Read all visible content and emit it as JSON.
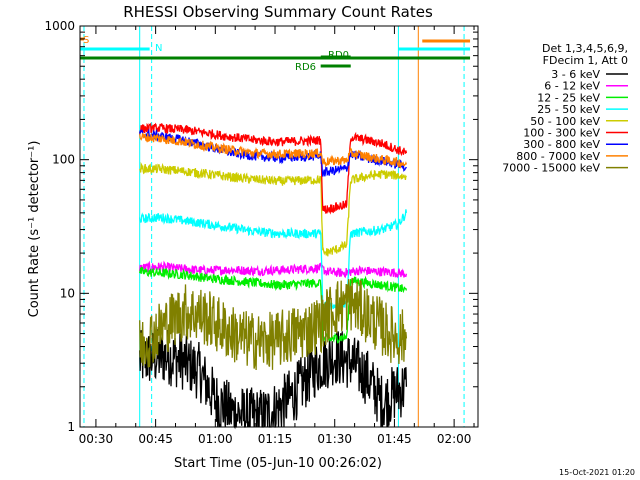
{
  "chart_data": {
    "type": "line",
    "title": "RHESSI Observing Summary Count Rates",
    "xlabel": "Start Time (05-Jun-10 00:26:02)",
    "ylabel": "Count Rate (s⁻¹ detector⁻¹)",
    "yscale": "log",
    "ylim": [
      1,
      1000
    ],
    "xlim_minutes": [
      26,
      126
    ],
    "x_ticks": [
      {
        "label": "00:30",
        "minute": 30
      },
      {
        "label": "00:45",
        "minute": 45
      },
      {
        "label": "01:00",
        "minute": 60
      },
      {
        "label": "01:15",
        "minute": 75
      },
      {
        "label": "01:30",
        "minute": 90
      },
      {
        "label": "01:45",
        "minute": 105
      },
      {
        "label": "02:00",
        "minute": 120
      }
    ],
    "y_ticks": [
      {
        "label": "1",
        "value": 1
      },
      {
        "label": "10",
        "value": 10
      },
      {
        "label": "100",
        "value": 100
      },
      {
        "label": "1000",
        "value": 1000
      }
    ],
    "legend": {
      "header": [
        "Det 1,3,4,5,6,9,",
        "FDecim 1, Att 0"
      ],
      "placement": "right"
    },
    "series": [
      {
        "name": "3 - 6 keV",
        "color": "#000000",
        "x": [
          41,
          44,
          48,
          52,
          56,
          60,
          64,
          68,
          72,
          76,
          80,
          84,
          86.5,
          90,
          94,
          98,
          102,
          105,
          108
        ],
        "y": [
          3.2,
          3.3,
          3.4,
          3.1,
          2.6,
          1.6,
          1.3,
          1.2,
          1.2,
          1.4,
          1.8,
          2.5,
          3.0,
          3.4,
          3.1,
          2.4,
          1.5,
          1.8,
          2.0
        ]
      },
      {
        "name": "6 - 12 keV",
        "color": "#ff00ff",
        "x": [
          41,
          46,
          52,
          58,
          64,
          70,
          76,
          82,
          86.5,
          88,
          92,
          96,
          100,
          104,
          108
        ],
        "y": [
          15.5,
          15.8,
          15.2,
          14.8,
          15.0,
          14.7,
          14.9,
          15.2,
          15.5,
          14.5,
          14.2,
          14.8,
          14.6,
          14.4,
          14.0
        ]
      },
      {
        "name": "12 - 25 keV",
        "color": "#00ee00",
        "x": [
          41,
          46,
          52,
          58,
          64,
          70,
          76,
          82,
          86.5,
          87,
          90,
          93,
          94,
          98,
          102,
          106,
          108
        ],
        "y": [
          14.5,
          14.2,
          13.8,
          13.0,
          12.5,
          12.0,
          11.5,
          11.8,
          12.0,
          4.5,
          4.6,
          4.7,
          12.5,
          12.0,
          11.5,
          11.0,
          10.5
        ]
      },
      {
        "name": "25 - 50 keV",
        "color": "#00ffff",
        "x": [
          41,
          46,
          52,
          58,
          64,
          70,
          76,
          82,
          86.5,
          87,
          90,
          93,
          94,
          98,
          102,
          106,
          108
        ],
        "y": [
          36,
          37,
          35,
          33,
          31,
          29,
          28,
          28,
          28,
          8.0,
          8.2,
          8.4,
          28,
          29,
          30,
          33,
          40
        ]
      },
      {
        "name": "50 - 100 keV",
        "color": "#cccc00",
        "x": [
          41,
          46,
          52,
          58,
          64,
          70,
          76,
          82,
          86.5,
          87,
          90,
          93,
          94,
          98,
          102,
          106,
          108
        ],
        "y": [
          86,
          85,
          82,
          78,
          74,
          71,
          69,
          70,
          71,
          20,
          21,
          23,
          70,
          75,
          78,
          76,
          74
        ]
      },
      {
        "name": "100 - 300 keV",
        "color": "#ff0000",
        "x": [
          41,
          46,
          52,
          58,
          64,
          70,
          76,
          82,
          86.5,
          87,
          90,
          93,
          94,
          98,
          102,
          106,
          108
        ],
        "y": [
          170,
          172,
          168,
          158,
          148,
          140,
          136,
          138,
          140,
          42,
          44,
          46,
          148,
          140,
          132,
          118,
          112
        ]
      },
      {
        "name": "300 - 800 keV",
        "color": "#0000ff",
        "x": [
          41,
          46,
          52,
          58,
          64,
          70,
          76,
          82,
          86.5,
          87,
          90,
          93,
          94,
          98,
          102,
          106,
          108
        ],
        "y": [
          156,
          150,
          140,
          126,
          113,
          106,
          103,
          105,
          107,
          80,
          83,
          86,
          110,
          102,
          98,
          92,
          88
        ]
      },
      {
        "name": "800 - 7000 keV",
        "color": "#ff8000",
        "x": [
          41,
          46,
          52,
          58,
          64,
          70,
          76,
          82,
          86.5,
          87,
          90,
          93,
          94,
          98,
          102,
          106,
          108
        ],
        "y": [
          148,
          144,
          136,
          126,
          118,
          112,
          110,
          111,
          112,
          96,
          98,
          99,
          112,
          106,
          100,
          96,
          92
        ]
      },
      {
        "name": "7000 - 15000 keV",
        "color": "#808000",
        "x": [
          41,
          44,
          48,
          52,
          56,
          60,
          64,
          68,
          72,
          76,
          80,
          84,
          86.5,
          90,
          94,
          98,
          102,
          105,
          108
        ],
        "y": [
          4.0,
          4.8,
          6.0,
          7.3,
          7.0,
          6.0,
          5.0,
          4.5,
          4.3,
          4.5,
          5.0,
          5.5,
          6.0,
          7.8,
          8.6,
          7.0,
          5.5,
          4.8,
          4.6
        ]
      }
    ],
    "flags": [
      {
        "label": "S",
        "color": "#ff8000",
        "x_start": 26,
        "x_end": 27
      },
      {
        "label": "N",
        "color": "#00ffff",
        "x_start": 26,
        "x_end": 43.5
      },
      {
        "label": "",
        "color": "#00ffff",
        "x_start": 106,
        "x_end": 124
      },
      {
        "label": "",
        "color": "#ff8000",
        "x_start": 112,
        "x_end": 124
      },
      {
        "label": "",
        "color": "#008000",
        "x_start": 26,
        "x_end": 124
      },
      {
        "label": "RD0",
        "color": "#008000",
        "x_start": 86.5,
        "x_end": 94
      },
      {
        "label": "RD6",
        "color": "#008000",
        "x_start": 86.5,
        "x_end": 94
      }
    ],
    "vertical_markers": [
      {
        "minute": 27,
        "color": "#00ffff",
        "style": "dashed"
      },
      {
        "minute": 44,
        "color": "#00ffff",
        "style": "dashed"
      },
      {
        "minute": 41,
        "color": "#00ffff",
        "style": "solid"
      },
      {
        "minute": 106,
        "color": "#00ffff",
        "style": "solid"
      },
      {
        "minute": 111,
        "color": "#ff8000",
        "style": "solid"
      },
      {
        "minute": 122.5,
        "color": "#00ffff",
        "style": "dashed"
      }
    ]
  },
  "footer": {
    "timestamp": "15-Oct-2021 01:20"
  }
}
